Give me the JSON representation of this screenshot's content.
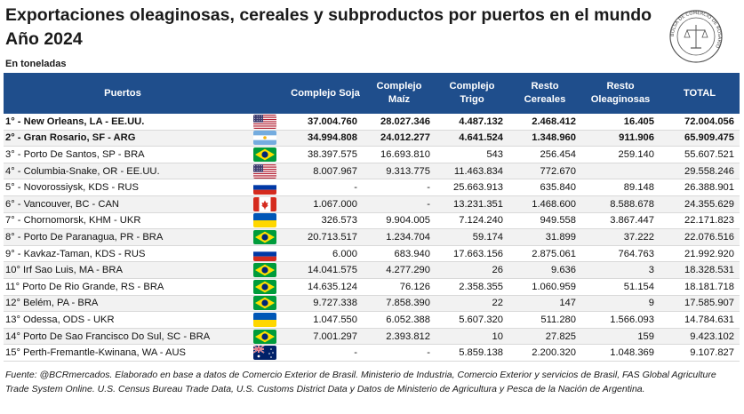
{
  "header": {
    "title": "Exportaciones oleaginosas, cereales y subproductos por puertos en el mundo Año 2024",
    "unit": "En toneladas"
  },
  "table": {
    "columns": [
      "Puertos",
      "",
      "Complejo Soja",
      "Complejo Maíz",
      "Complejo Trigo",
      "Resto Cereales",
      "Resto Oleaginosas",
      "TOTAL"
    ],
    "rows": [
      {
        "port": "1° - New Orleans, LA - EE.UU.",
        "flag": "usa-flag",
        "soja": "37.004.760",
        "maiz": "28.027.346",
        "trigo": "4.487.132",
        "cereales": "2.468.412",
        "oleaginosas": "16.405",
        "total": "72.004.056"
      },
      {
        "port": "2° - Gran Rosario, SF - ARG",
        "flag": "argentina-flag",
        "soja": "34.994.808",
        "maiz": "24.012.277",
        "trigo": "4.641.524",
        "cereales": "1.348.960",
        "oleaginosas": "911.906",
        "total": "65.909.475"
      },
      {
        "port": "3° - Porto De Santos, SP - BRA",
        "flag": "brazil-flag",
        "soja": "38.397.575",
        "maiz": "16.693.810",
        "trigo": "543",
        "cereales": "256.454",
        "oleaginosas": "259.140",
        "total": "55.607.521"
      },
      {
        "port": "4° - Columbia-Snake, OR - EE.UU.",
        "flag": "usa-flag",
        "soja": "8.007.967",
        "maiz": "9.313.775",
        "trigo": "11.463.834",
        "cereales": "772.670",
        "oleaginosas": "",
        "total": "29.558.246"
      },
      {
        "port": "5° - Novorossiysk, KDS - RUS",
        "flag": "russia-flag",
        "soja": "-",
        "maiz": "-",
        "trigo": "25.663.913",
        "cereales": "635.840",
        "oleaginosas": "89.148",
        "total": "26.388.901"
      },
      {
        "port": "6° - Vancouver, BC - CAN",
        "flag": "canada-flag",
        "soja": "1.067.000",
        "maiz": "-",
        "trigo": "13.231.351",
        "cereales": "1.468.600",
        "oleaginosas": "8.588.678",
        "total": "24.355.629"
      },
      {
        "port": "7° - Chornomorsk, KHM - UKR",
        "flag": "ukraine-flag",
        "soja": "326.573",
        "maiz": "9.904.005",
        "trigo": "7.124.240",
        "cereales": "949.558",
        "oleaginosas": "3.867.447",
        "total": "22.171.823"
      },
      {
        "port": "8° - Porto De Paranagua, PR - BRA",
        "flag": "brazil-flag",
        "soja": "20.713.517",
        "maiz": "1.234.704",
        "trigo": "59.174",
        "cereales": "31.899",
        "oleaginosas": "37.222",
        "total": "22.076.516"
      },
      {
        "port": "9° - Kavkaz-Taman, KDS - RUS",
        "flag": "russia-flag",
        "soja": "6.000",
        "maiz": "683.940",
        "trigo": "17.663.156",
        "cereales": "2.875.061",
        "oleaginosas": "764.763",
        "total": "21.992.920"
      },
      {
        "port": "10° Irf Sao Luis, MA - BRA",
        "flag": "brazil-flag",
        "soja": "14.041.575",
        "maiz": "4.277.290",
        "trigo": "26",
        "cereales": "9.636",
        "oleaginosas": "3",
        "total": "18.328.531"
      },
      {
        "port": "11° Porto De Rio Grande, RS - BRA",
        "flag": "brazil-flag",
        "soja": "14.635.124",
        "maiz": "76.126",
        "trigo": "2.358.355",
        "cereales": "1.060.959",
        "oleaginosas": "51.154",
        "total": "18.181.718"
      },
      {
        "port": "12° Belém, PA - BRA",
        "flag": "brazil-flag",
        "soja": "9.727.338",
        "maiz": "7.858.390",
        "trigo": "22",
        "cereales": "147",
        "oleaginosas": "9",
        "total": "17.585.907"
      },
      {
        "port": "13° Odessa, ODS - UKR",
        "flag": "ukraine-flag",
        "soja": "1.047.550",
        "maiz": "6.052.388",
        "trigo": "5.607.320",
        "cereales": "511.280",
        "oleaginosas": "1.566.093",
        "total": "14.784.631"
      },
      {
        "port": "14° Porto De Sao Francisco Do Sul, SC - BRA",
        "flag": "brazil-flag",
        "soja": "7.001.297",
        "maiz": "2.393.812",
        "trigo": "10",
        "cereales": "27.825",
        "oleaginosas": "159",
        "total": "9.423.102"
      },
      {
        "port": "15° Perth-Fremantle-Kwinana, WA - AUS",
        "flag": "australia-flag",
        "soja": "-",
        "maiz": "-",
        "trigo": "5.859.138",
        "cereales": "2.200.320",
        "oleaginosas": "1.048.369",
        "total": "9.107.827"
      }
    ],
    "bold_rows": [
      0,
      1
    ]
  },
  "footer": {
    "source": "Fuente: @BCRmercados. Elaborado en base a datos de Comercio Exterior de Brasil. Ministerio de Industria, Comercio Exterior y servicios de Brasil, FAS Global Agriculture Trade System Online. U.S. Census Bureau Trade Data, U.S. Customs District Data y Datos de Ministerio de Agricultura y Pesca de la Nación de Argentina."
  },
  "logo": {
    "name": "bolsa-de-comercio-de-rosario-seal",
    "lettering": "BOLSA DE COMERCIO DE ROSARIO"
  },
  "colors": {
    "header_bg": "#1f4e8c",
    "header_text": "#ffffff",
    "row_alt": "#f2f2f2"
  }
}
